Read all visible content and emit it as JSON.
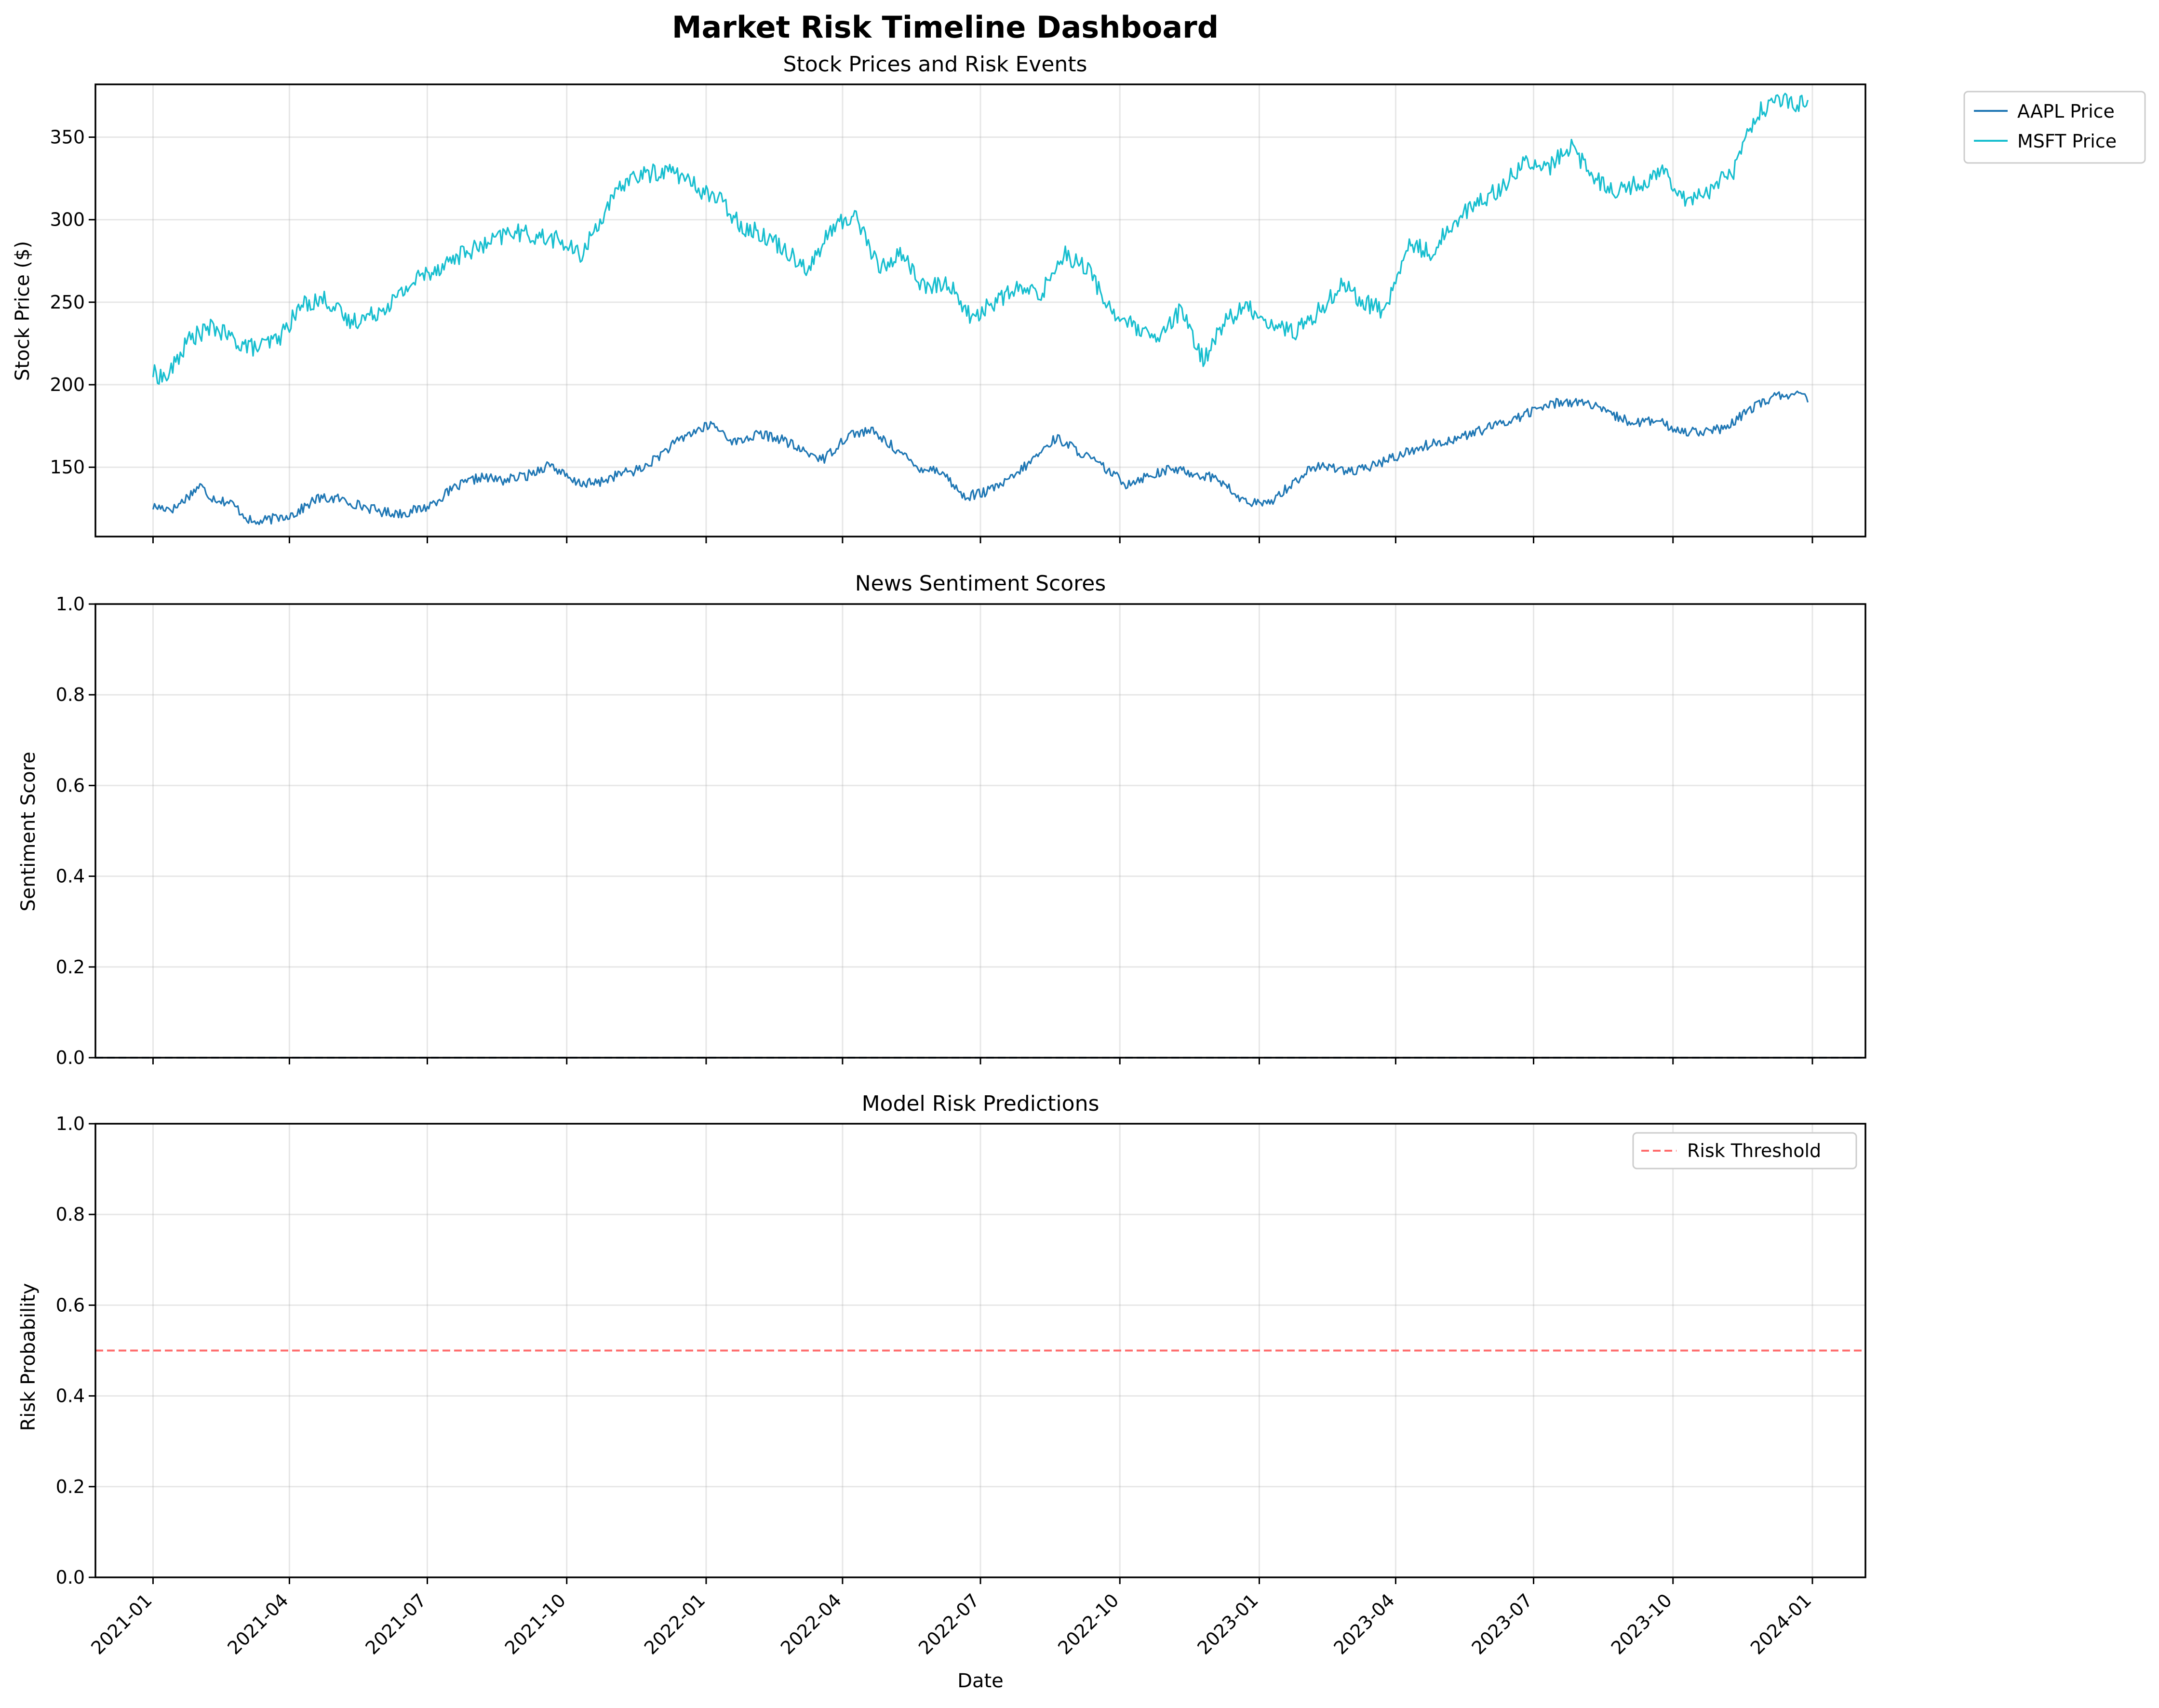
{
  "figure": {
    "title": "Market Risk Timeline Dashboard"
  },
  "colors": {
    "aapl": "#1f77b4",
    "msft": "#17becf",
    "sentiment_line": "#1f4e79",
    "threshold": "#ff6b6b"
  },
  "chart_data": [
    {
      "type": "line",
      "title": "Stock Prices and Risk Events",
      "xlabel": "",
      "ylabel": "Stock Price ($)",
      "x_start": "2021-01-01",
      "x_end": "2023-12-29",
      "xlim": [
        "2020-11-24",
        "2024-02-05"
      ],
      "ylim": [
        108,
        382
      ],
      "yticks": [
        150,
        200,
        250,
        300,
        350
      ],
      "grid": true,
      "legend": "outside top-right",
      "series": [
        {
          "name": "AAPL Price",
          "x": [
            "2021-01-01",
            "2021-01-15",
            "2021-02-01",
            "2021-02-08",
            "2021-02-22",
            "2021-03-08",
            "2021-03-22",
            "2021-04-05",
            "2021-04-19",
            "2021-05-03",
            "2021-05-17",
            "2021-06-01",
            "2021-06-15",
            "2021-07-01",
            "2021-07-20",
            "2021-08-05",
            "2021-08-20",
            "2021-09-05",
            "2021-09-20",
            "2021-10-05",
            "2021-10-20",
            "2021-11-05",
            "2021-11-20",
            "2021-12-05",
            "2021-12-20",
            "2022-01-05",
            "2022-01-20",
            "2022-02-05",
            "2022-02-20",
            "2022-03-05",
            "2022-03-20",
            "2022-04-05",
            "2022-04-20",
            "2022-05-05",
            "2022-05-20",
            "2022-06-05",
            "2022-06-20",
            "2022-07-05",
            "2022-07-20",
            "2022-08-05",
            "2022-08-20",
            "2022-09-05",
            "2022-09-20",
            "2022-10-05",
            "2022-10-20",
            "2022-11-05",
            "2022-11-20",
            "2022-12-05",
            "2022-12-20",
            "2023-01-05",
            "2023-01-20",
            "2023-02-05",
            "2023-02-20",
            "2023-03-05",
            "2023-03-20",
            "2023-04-05",
            "2023-04-20",
            "2023-05-05",
            "2023-05-20",
            "2023-06-05",
            "2023-06-20",
            "2023-07-05",
            "2023-07-20",
            "2023-08-05",
            "2023-08-20",
            "2023-09-05",
            "2023-09-20",
            "2023-10-05",
            "2023-10-20",
            "2023-11-05",
            "2023-11-20",
            "2023-12-05",
            "2023-12-20",
            "2023-12-29"
          ],
          "values": [
            126,
            125,
            139,
            132,
            128,
            116,
            119,
            122,
            131,
            131,
            127,
            123,
            122,
            126,
            138,
            144,
            142,
            145,
            152,
            141,
            140,
            146,
            149,
            160,
            170,
            176,
            165,
            170,
            167,
            160,
            155,
            170,
            172,
            162,
            150,
            148,
            132,
            135,
            142,
            155,
            168,
            159,
            150,
            140,
            145,
            149,
            146,
            143,
            130,
            127,
            138,
            150,
            150,
            147,
            152,
            158,
            163,
            166,
            170,
            175,
            180,
            186,
            190,
            189,
            182,
            177,
            178,
            172,
            172,
            173,
            185,
            192,
            195,
            191
          ]
        },
        {
          "name": "MSFT Price",
          "x": [
            "2021-01-01",
            "2021-01-10",
            "2021-01-25",
            "2021-02-10",
            "2021-02-25",
            "2021-03-10",
            "2021-03-25",
            "2021-04-10",
            "2021-04-25",
            "2021-05-10",
            "2021-05-25",
            "2021-06-10",
            "2021-06-25",
            "2021-07-10",
            "2021-07-25",
            "2021-08-10",
            "2021-08-25",
            "2021-09-10",
            "2021-09-25",
            "2021-10-10",
            "2021-10-25",
            "2021-11-10",
            "2021-11-25",
            "2021-12-10",
            "2021-12-25",
            "2022-01-10",
            "2022-01-25",
            "2022-02-10",
            "2022-02-25",
            "2022-03-10",
            "2022-03-25",
            "2022-04-10",
            "2022-04-25",
            "2022-05-10",
            "2022-05-25",
            "2022-06-10",
            "2022-06-25",
            "2022-07-10",
            "2022-07-25",
            "2022-08-10",
            "2022-08-25",
            "2022-09-10",
            "2022-09-25",
            "2022-10-10",
            "2022-10-25",
            "2022-11-10",
            "2022-11-25",
            "2022-12-10",
            "2022-12-25",
            "2023-01-10",
            "2023-01-25",
            "2023-02-10",
            "2023-02-25",
            "2023-03-10",
            "2023-03-25",
            "2023-04-10",
            "2023-04-25",
            "2023-05-10",
            "2023-05-25",
            "2023-06-10",
            "2023-06-25",
            "2023-07-10",
            "2023-07-25",
            "2023-08-10",
            "2023-08-25",
            "2023-09-10",
            "2023-09-25",
            "2023-10-10",
            "2023-10-25",
            "2023-11-10",
            "2023-11-25",
            "2023-12-10",
            "2023-12-29"
          ],
          "values": [
            207,
            204,
            228,
            235,
            226,
            222,
            228,
            249,
            252,
            238,
            242,
            252,
            265,
            272,
            280,
            285,
            293,
            290,
            288,
            278,
            303,
            325,
            328,
            330,
            320,
            312,
            296,
            290,
            280,
            270,
            295,
            303,
            270,
            280,
            258,
            262,
            240,
            250,
            258,
            255,
            280,
            270,
            245,
            235,
            226,
            245,
            215,
            240,
            247,
            236,
            232,
            245,
            262,
            250,
            245,
            285,
            280,
            300,
            310,
            320,
            335,
            330,
            345,
            325,
            318,
            322,
            330,
            312,
            318,
            330,
            365,
            372,
            370
          ]
        }
      ]
    },
    {
      "type": "line",
      "title": "News Sentiment Scores",
      "xlabel": "",
      "ylabel": "Sentiment Score",
      "ylim": [
        0,
        1
      ],
      "yticks": [
        0.0,
        0.2,
        0.4,
        0.6,
        0.8,
        1.0
      ],
      "grid": true,
      "series": [
        {
          "x": [
            "2020-11-24",
            "2024-02-05"
          ],
          "values": [
            0.0,
            0.0
          ]
        }
      ]
    },
    {
      "type": "line",
      "title": "Model Risk Predictions",
      "xlabel": "Date",
      "ylabel": "Risk Probability",
      "ylim": [
        0,
        1
      ],
      "yticks": [
        0.0,
        0.2,
        0.4,
        0.6,
        0.8,
        1.0
      ],
      "grid": true,
      "legend": "top-right",
      "threshold": {
        "name": "Risk Threshold",
        "value": 0.5
      },
      "xticks": [
        "2021-01",
        "2021-04",
        "2021-07",
        "2021-10",
        "2022-01",
        "2022-04",
        "2022-07",
        "2022-10",
        "2023-01",
        "2023-04",
        "2023-07",
        "2023-10",
        "2024-01"
      ]
    }
  ]
}
